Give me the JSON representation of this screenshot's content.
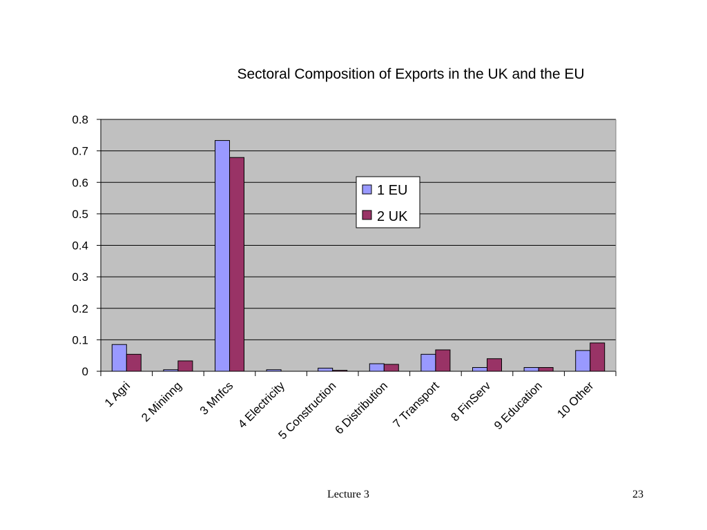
{
  "slide": {
    "footer_text": "Lecture 3",
    "page_number": "23"
  },
  "colors": {
    "plot_bg": "#c0c0c0",
    "eu": "#9999ff",
    "uk": "#993366",
    "grid": "#000000"
  },
  "chart_data": {
    "type": "bar",
    "title": "Sectoral Composition of Exports in the UK and the EU",
    "xlabel": "",
    "ylabel": "",
    "ylim": [
      0,
      0.8
    ],
    "yticks": [
      "0",
      "0.1",
      "0.2",
      "0.3",
      "0.4",
      "0.5",
      "0.6",
      "0.7",
      "0.8"
    ],
    "grid": true,
    "legend_position": "center",
    "categories": [
      "1 Agri",
      "2 Mininng",
      "3 Mnfcs",
      "4 Electricity",
      "5 Construction",
      "6 Distribution",
      "7 Transport",
      "8 FinServ",
      "9 Education",
      "10 Other"
    ],
    "series": [
      {
        "name": "1 EU",
        "values": [
          0.085,
          0.005,
          0.733,
          0.005,
          0.01,
          0.024,
          0.054,
          0.012,
          0.012,
          0.066
        ]
      },
      {
        "name": "2 UK",
        "values": [
          0.054,
          0.033,
          0.679,
          0.0,
          0.003,
          0.022,
          0.068,
          0.04,
          0.012,
          0.09
        ]
      }
    ]
  }
}
